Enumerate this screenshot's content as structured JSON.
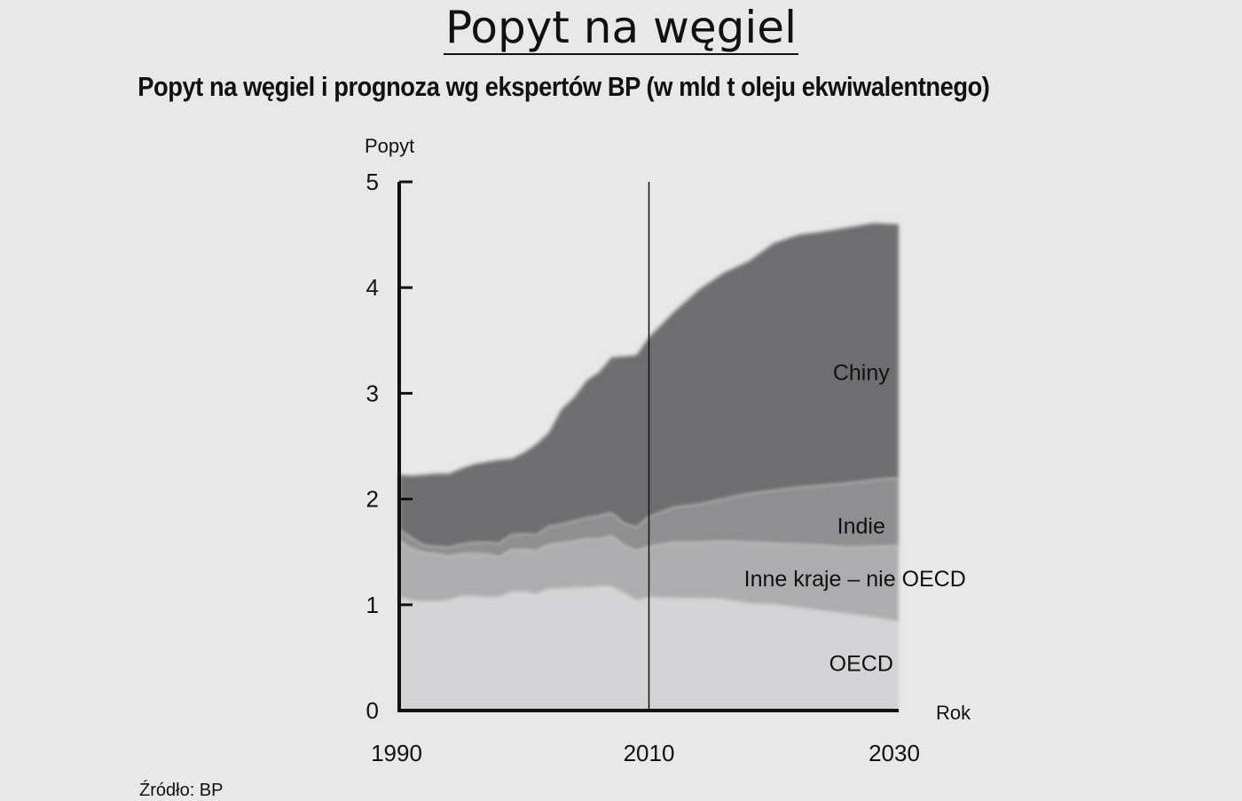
{
  "title": "Popyt na węgiel",
  "subtitle": "Popyt na węgiel i prognoza wg ekspertów BP (w mld t oleju ekwiwalentnego)",
  "source": "Źródło: BP",
  "chart_data": {
    "type": "area",
    "stacked": true,
    "xlabel": "Rok",
    "ylabel": "Popyt",
    "xlim": [
      1990,
      2030
    ],
    "ylim": [
      0,
      5
    ],
    "x_ticks": [
      1990,
      2010,
      2030
    ],
    "y_ticks": [
      0,
      1,
      2,
      3,
      4,
      5
    ],
    "divider_year": 2010,
    "grid": false,
    "x": [
      1990,
      1991,
      1992,
      1993,
      1994,
      1995,
      1996,
      1997,
      1998,
      1999,
      2000,
      2001,
      2002,
      2003,
      2004,
      2005,
      2006,
      2007,
      2008,
      2009,
      2010,
      2012,
      2014,
      2016,
      2018,
      2020,
      2022,
      2024,
      2026,
      2028,
      2030
    ],
    "series": [
      {
        "name": "OECD",
        "color": "#d4d4d6",
        "values": [
          1.07,
          1.04,
          1.03,
          1.03,
          1.04,
          1.08,
          1.08,
          1.07,
          1.07,
          1.12,
          1.12,
          1.1,
          1.15,
          1.15,
          1.16,
          1.16,
          1.17,
          1.17,
          1.11,
          1.04,
          1.07,
          1.06,
          1.06,
          1.05,
          1.01,
          1.0,
          0.97,
          0.94,
          0.91,
          0.88,
          0.84
        ]
      },
      {
        "name": "Inne kraje – nie OECD",
        "color": "#adadaf",
        "values": [
          0.53,
          0.49,
          0.46,
          0.45,
          0.42,
          0.4,
          0.4,
          0.41,
          0.38,
          0.4,
          0.4,
          0.41,
          0.42,
          0.43,
          0.44,
          0.46,
          0.45,
          0.48,
          0.45,
          0.47,
          0.48,
          0.53,
          0.53,
          0.55,
          0.58,
          0.58,
          0.6,
          0.62,
          0.63,
          0.67,
          0.72
        ]
      },
      {
        "name": "Indie",
        "color": "#8f8f91",
        "values": [
          0.11,
          0.1,
          0.07,
          0.07,
          0.08,
          0.09,
          0.11,
          0.11,
          0.13,
          0.14,
          0.15,
          0.15,
          0.17,
          0.18,
          0.19,
          0.2,
          0.22,
          0.22,
          0.21,
          0.22,
          0.28,
          0.33,
          0.36,
          0.4,
          0.46,
          0.5,
          0.54,
          0.57,
          0.61,
          0.63,
          0.64
        ]
      },
      {
        "name": "Chiny",
        "color": "#6e6e70",
        "values": [
          0.52,
          0.59,
          0.67,
          0.69,
          0.7,
          0.72,
          0.74,
          0.76,
          0.79,
          0.72,
          0.77,
          0.86,
          0.89,
          1.09,
          1.17,
          1.3,
          1.36,
          1.47,
          1.58,
          1.63,
          1.7,
          1.85,
          2.03,
          2.14,
          2.2,
          2.34,
          2.39,
          2.4,
          2.42,
          2.43,
          2.4
        ]
      }
    ],
    "labels": [
      {
        "text": "Chiny",
        "x": 2027,
        "y": 3.2
      },
      {
        "text": "Indie",
        "x": 2027,
        "y": 1.75
      },
      {
        "text": "Inne kraje – nie OECD",
        "x": 2026.5,
        "y": 1.25
      },
      {
        "text": "OECD",
        "x": 2027,
        "y": 0.45
      }
    ]
  }
}
